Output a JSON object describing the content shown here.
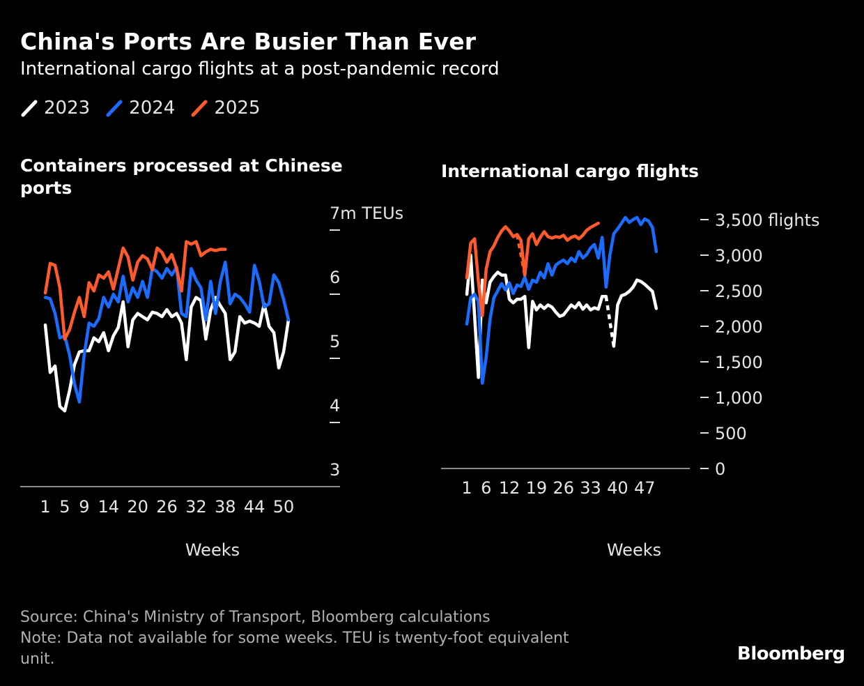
{
  "title": "China's Ports Are Busier Than Ever",
  "subtitle": "International cargo flights at a post-pandemic record",
  "legend": [
    {
      "label": "2023",
      "color": "#ffffff"
    },
    {
      "label": "2024",
      "color": "#1a6cff"
    },
    {
      "label": "2025",
      "color": "#ff5a2c"
    }
  ],
  "source": "Source: China's Ministry of Transport, Bloomberg calculations",
  "note": "Note: Data not available for some weeks. TEU is twenty-foot equivalent unit.",
  "brand": "Bloomberg",
  "chart_data": [
    {
      "type": "line",
      "title": "Containers processed at Chinese ports",
      "xlabel": "Weeks",
      "ylabel": "",
      "unit_label": "7m TEUs",
      "xlim": [
        0,
        57
      ],
      "ylim": [
        3,
        7
      ],
      "x_ticks": [
        1,
        5,
        9,
        14,
        20,
        26,
        32,
        38,
        44,
        50
      ],
      "y_ticks": [
        3,
        4,
        5,
        6,
        7
      ],
      "y_tick_labels": [
        "3",
        "4",
        "5",
        "6",
        "7m TEUs"
      ],
      "series": [
        {
          "name": "2023",
          "color": "#ffffff",
          "x": [
            1,
            2,
            3,
            4,
            5,
            6,
            7,
            8,
            9,
            10,
            11,
            12,
            13,
            14,
            15,
            16,
            17,
            18,
            19,
            20,
            21,
            22,
            23,
            24,
            25,
            26,
            27,
            28,
            29,
            30,
            31,
            32,
            33,
            34,
            35,
            36,
            37,
            38,
            39,
            40,
            41,
            42,
            43,
            44,
            45,
            46,
            47,
            48,
            49,
            50,
            51,
            52
          ],
          "y": [
            5.52,
            4.78,
            4.88,
            4.25,
            4.18,
            4.5,
            4.9,
            5.1,
            5.12,
            5.12,
            5.32,
            5.26,
            5.4,
            5.12,
            5.35,
            5.48,
            5.88,
            5.18,
            5.6,
            5.7,
            5.65,
            5.6,
            5.72,
            5.7,
            5.65,
            5.76,
            5.65,
            5.7,
            5.55,
            4.98,
            5.8,
            5.95,
            5.9,
            5.3,
            5.75,
            5.95,
            5.82,
            5.7,
            4.98,
            5.1,
            5.65,
            5.55,
            5.58,
            5.55,
            5.5,
            5.85,
            5.5,
            5.4,
            4.85,
            5.1,
            5.6,
            null
          ]
        },
        {
          "name": "2024",
          "color": "#1a6cff",
          "x": [
            1,
            2,
            3,
            4,
            5,
            6,
            7,
            8,
            9,
            10,
            11,
            12,
            13,
            14,
            15,
            16,
            17,
            18,
            19,
            20,
            21,
            22,
            23,
            24,
            25,
            26,
            27,
            28,
            29,
            30,
            31,
            32,
            33,
            34,
            35,
            36,
            37,
            38,
            39,
            40,
            41,
            42,
            43,
            44,
            45,
            46,
            47,
            48,
            49,
            50,
            51,
            52
          ],
          "y": [
            5.95,
            5.93,
            5.7,
            5.32,
            5.35,
            5.05,
            4.6,
            4.32,
            5.05,
            5.55,
            5.5,
            5.62,
            5.95,
            5.8,
            6.0,
            5.88,
            6.28,
            5.88,
            6.1,
            5.95,
            6.2,
            5.95,
            6.4,
            6.35,
            6.25,
            6.4,
            6.3,
            6.42,
            5.7,
            5.65,
            6.4,
            6.22,
            6.1,
            5.6,
            6.2,
            5.7,
            6.2,
            6.5,
            5.85,
            6.0,
            5.95,
            5.85,
            5.72,
            6.45,
            6.2,
            5.8,
            5.85,
            6.3,
            6.18,
            5.92,
            5.6,
            null
          ]
        },
        {
          "name": "2025",
          "color": "#ff5a2c",
          "x": [
            1,
            2,
            3,
            4,
            5,
            6,
            7,
            8,
            9,
            10,
            11,
            12,
            13,
            14,
            15,
            16,
            17,
            18,
            19,
            20,
            21,
            22,
            23,
            24,
            25,
            26,
            27,
            28,
            29,
            30,
            31,
            32,
            33,
            34,
            35,
            36,
            37,
            38
          ],
          "y": [
            6.02,
            6.48,
            6.45,
            6.1,
            5.3,
            5.45,
            5.72,
            5.95,
            5.65,
            6.18,
            6.05,
            6.3,
            6.25,
            6.35,
            6.08,
            6.4,
            6.72,
            6.58,
            6.22,
            6.5,
            6.6,
            6.55,
            6.38,
            6.72,
            6.65,
            6.5,
            6.62,
            6.4,
            6.05,
            6.82,
            6.78,
            6.82,
            6.6,
            6.66,
            6.7,
            6.68,
            6.7,
            6.7
          ]
        }
      ]
    },
    {
      "type": "line",
      "title": "International cargo flights",
      "xlabel": "Weeks",
      "ylabel": "",
      "unit_label": "3,500 flights",
      "xlim": [
        -3,
        55
      ],
      "ylim": [
        0,
        3500
      ],
      "x_ticks": [
        1,
        6,
        12,
        19,
        26,
        33,
        40,
        47
      ],
      "y_ticks": [
        0,
        500,
        1000,
        1500,
        2000,
        2500,
        3000,
        3500
      ],
      "y_tick_labels": [
        "0",
        "500",
        "1,000",
        "1,500",
        "2,000",
        "2,500",
        "3,000",
        "3,500 flights"
      ],
      "gap_note": "dashed segments mark weeks with missing data",
      "series": [
        {
          "name": "2023",
          "color": "#ffffff",
          "x": [
            1,
            2,
            3,
            4,
            5,
            6,
            7,
            8,
            9,
            10,
            11,
            12,
            13,
            14,
            15,
            16,
            17,
            18,
            19,
            20,
            21,
            22,
            23,
            24,
            25,
            26,
            27,
            28,
            29,
            30,
            31,
            32,
            33,
            34,
            35,
            36,
            37,
            38,
            39,
            40,
            41,
            42,
            43,
            44,
            45,
            46,
            47,
            48,
            49,
            50,
            51,
            52
          ],
          "y": [
            2450,
            3000,
            2150,
            1280,
            2650,
            2330,
            2620,
            2700,
            2760,
            2720,
            2720,
            2380,
            2330,
            2380,
            2380,
            2420,
            1700,
            2350,
            2230,
            2300,
            2250,
            2300,
            2270,
            2200,
            2140,
            2160,
            2230,
            2300,
            2260,
            2330,
            2240,
            2300,
            2230,
            2260,
            2240,
            2420,
            2420,
            null,
            1720,
            2300,
            2430,
            2450,
            2490,
            2550,
            2650,
            2630,
            2590,
            2540,
            2490,
            2250,
            null,
            null
          ],
          "dashed_segments": [
            [
              37,
              39
            ]
          ]
        },
        {
          "name": "2024",
          "color": "#1a6cff",
          "x": [
            1,
            2,
            3,
            4,
            5,
            6,
            7,
            8,
            9,
            10,
            11,
            12,
            13,
            14,
            15,
            16,
            17,
            18,
            19,
            20,
            21,
            22,
            23,
            24,
            25,
            26,
            27,
            28,
            29,
            30,
            31,
            32,
            33,
            34,
            35,
            36,
            37,
            38,
            39,
            40,
            41,
            42,
            43,
            44,
            45,
            46,
            47,
            48,
            49,
            50,
            51,
            52
          ],
          "y": [
            2030,
            2400,
            2450,
            2350,
            1200,
            1560,
            2100,
            2400,
            2500,
            2600,
            2510,
            2610,
            2460,
            2580,
            2560,
            2690,
            2520,
            2650,
            2620,
            2760,
            2680,
            2880,
            2720,
            2860,
            2900,
            2930,
            2880,
            2960,
            2910,
            3050,
            2960,
            3010,
            3100,
            3150,
            2960,
            3250,
            2550,
            3000,
            3300,
            3370,
            3450,
            3530,
            3460,
            3500,
            3530,
            3430,
            3510,
            3480,
            3390,
            3050,
            null,
            null
          ]
        },
        {
          "name": "2025",
          "color": "#ff5a2c",
          "x": [
            1,
            2,
            3,
            4,
            5,
            6,
            7,
            8,
            9,
            10,
            11,
            12,
            13,
            14,
            15,
            16,
            17,
            18,
            19,
            20,
            21,
            22,
            23,
            24,
            25,
            26,
            27,
            28,
            29,
            30,
            31,
            32,
            33,
            34,
            35,
            36
          ],
          "y": [
            2680,
            3170,
            3230,
            2630,
            2150,
            2800,
            3050,
            3130,
            3250,
            3340,
            3400,
            3340,
            3260,
            3290,
            3210,
            2720,
            3230,
            3300,
            3150,
            3250,
            3330,
            3260,
            3240,
            3260,
            3250,
            3280,
            3210,
            3250,
            3270,
            3230,
            3280,
            3350,
            3390,
            3420,
            3450,
            null
          ],
          "dashed_segments": [
            [
              14,
              16
            ]
          ]
        }
      ]
    }
  ]
}
